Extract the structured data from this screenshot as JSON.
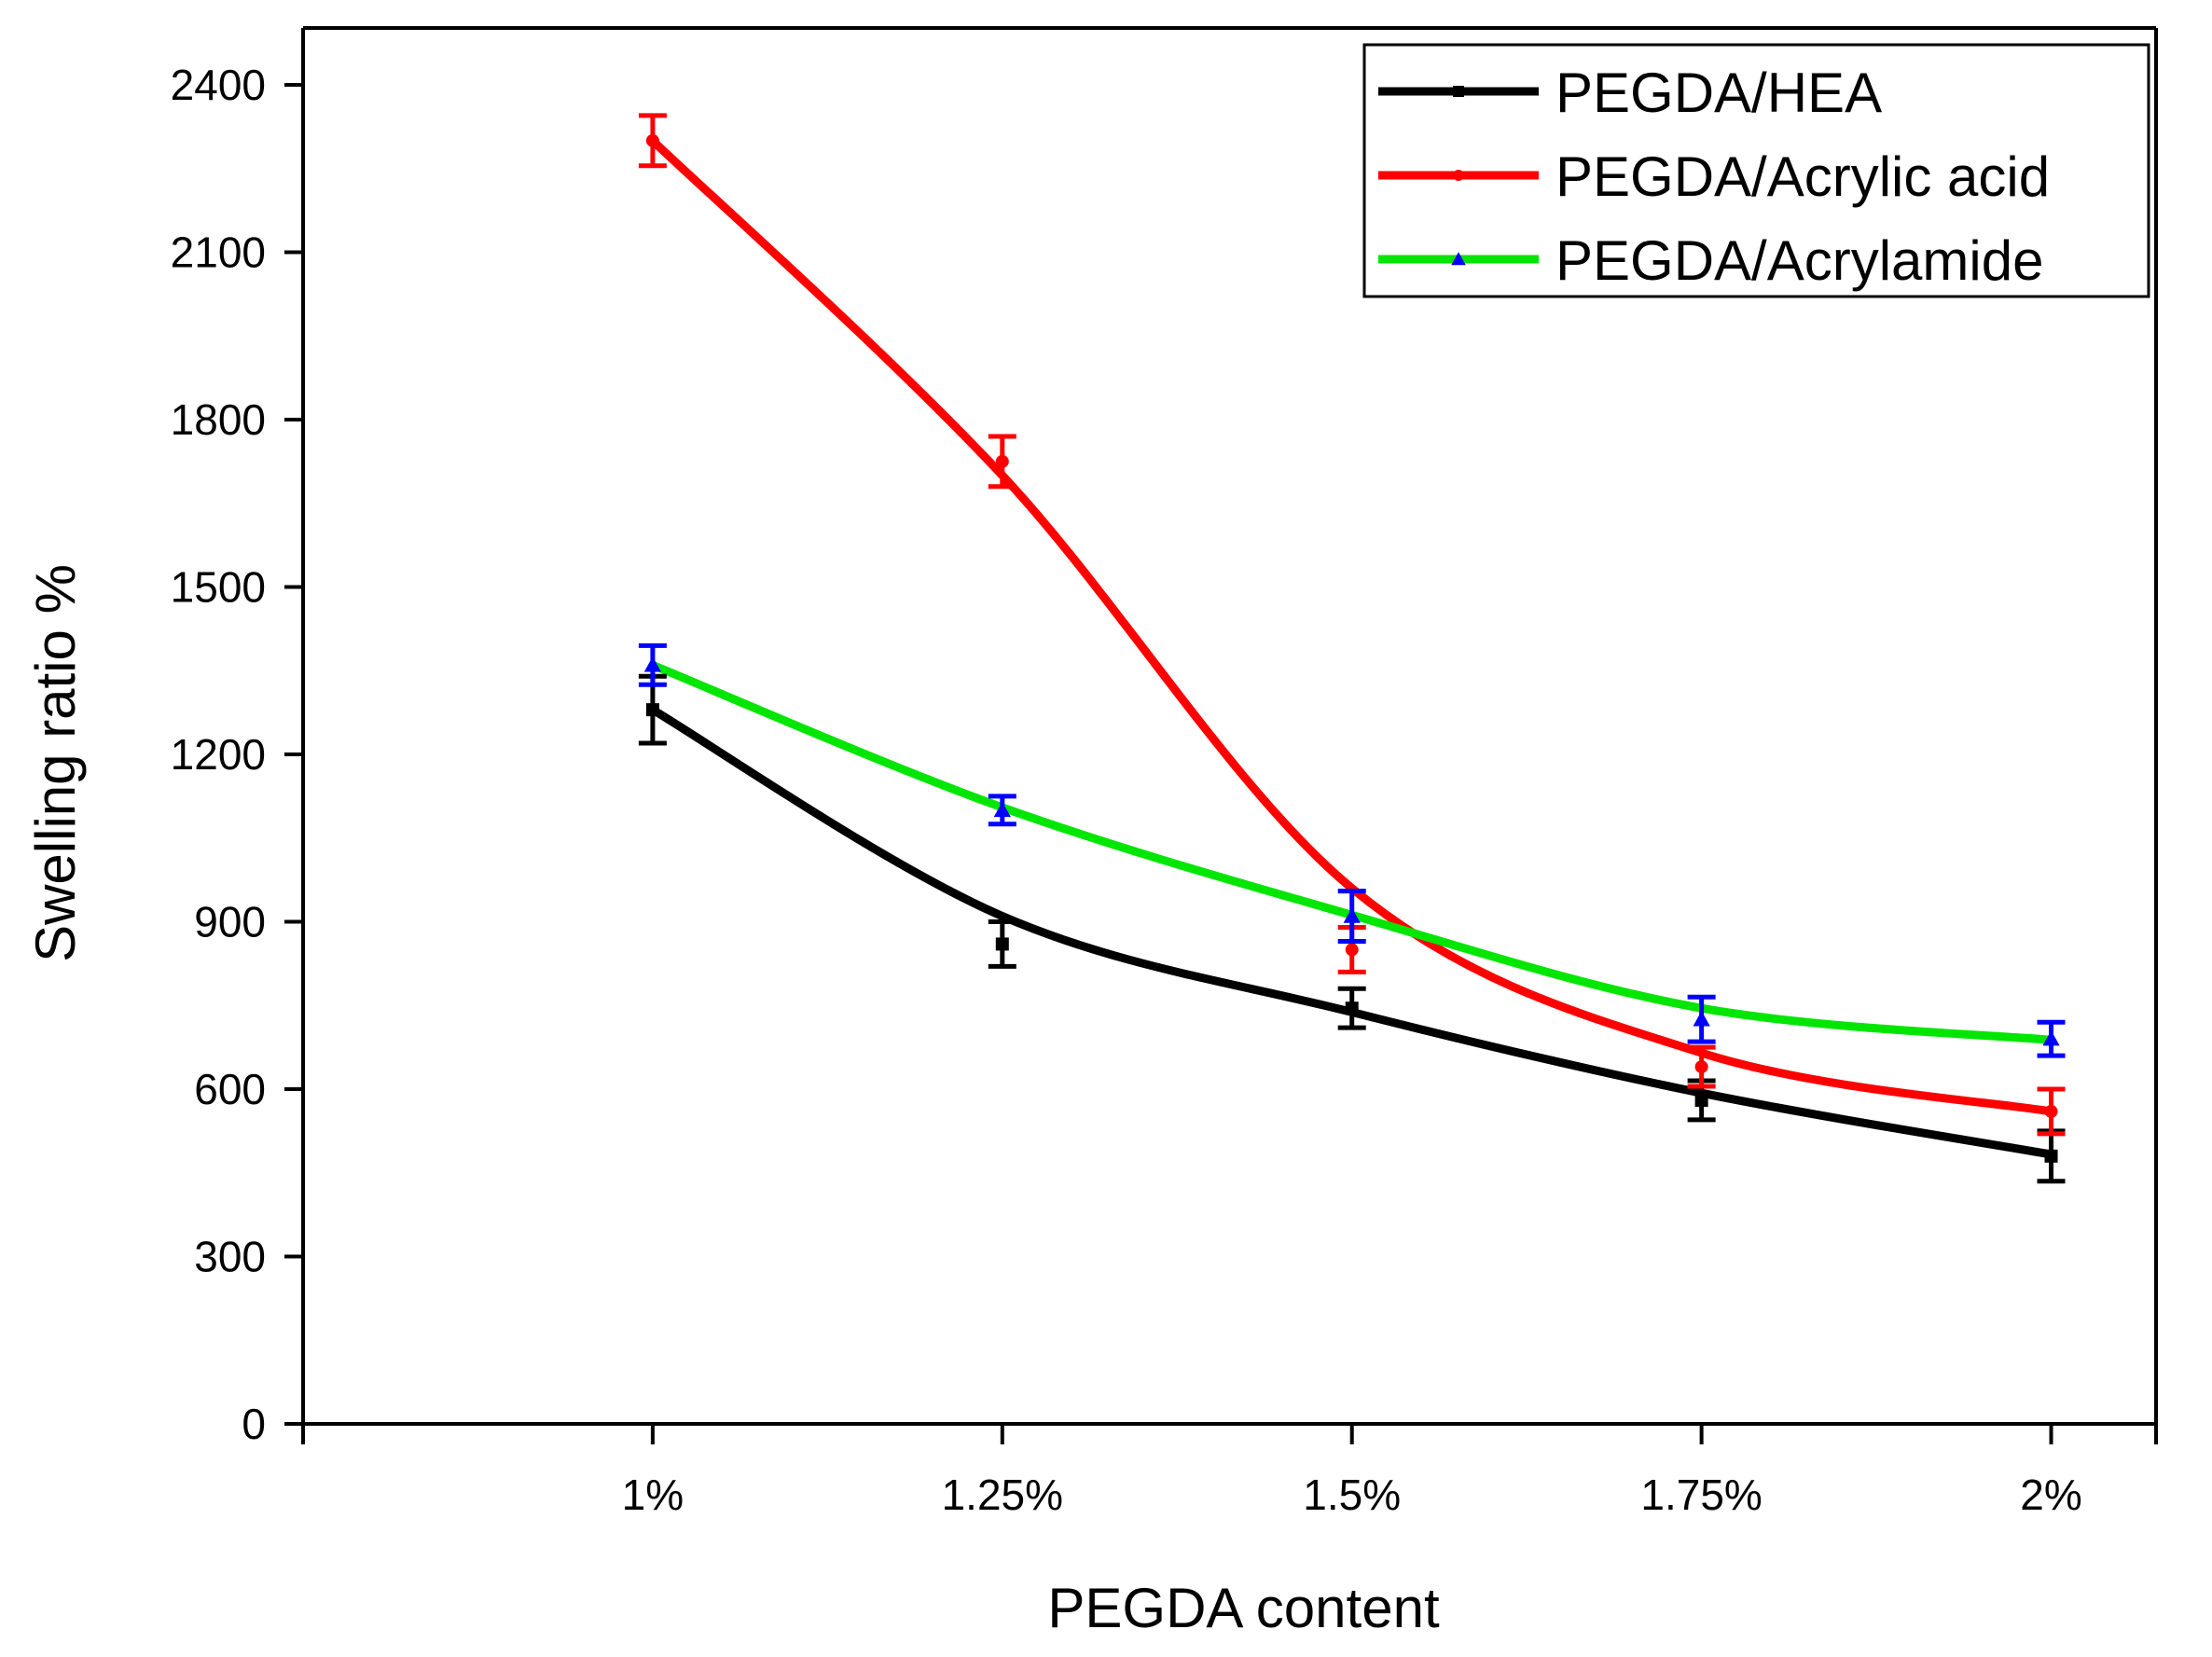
{
  "chart_data": {
    "type": "line",
    "title": "",
    "xlabel": "PEGDA content",
    "ylabel": "Swelling ratio %",
    "categories": [
      "1%",
      "1.25%",
      "1.5%",
      "1.75%",
      "2%"
    ],
    "xlim": [
      0,
      5.3
    ],
    "ylim": [
      0,
      2400
    ],
    "yticks": [
      0,
      300,
      600,
      900,
      1200,
      1500,
      1800,
      2100,
      2400
    ],
    "grid": false,
    "legend_position": "top-right",
    "series": [
      {
        "name": "PEGDA/HEA",
        "line_color": "#000000",
        "marker_color": "#000000",
        "errorbar_color": "#000000",
        "marker": "square",
        "values": [
          1280,
          860,
          745,
          580,
          480
        ],
        "errors": [
          60,
          40,
          35,
          35,
          45
        ],
        "fit_values": [
          1280,
          910,
          738,
          593,
          483
        ]
      },
      {
        "name": "PEGDA/Acrylic acid",
        "line_color": "#ff0000",
        "marker_color": "#ff0000",
        "errorbar_color": "#ff0000",
        "marker": "circle",
        "values": [
          2300,
          1725,
          850,
          640,
          560
        ],
        "errors": [
          45,
          45,
          40,
          35,
          40
        ],
        "fit_values": [
          2300,
          1700,
          960,
          665,
          560
        ]
      },
      {
        "name": "PEGDA/Acrylamide",
        "line_color": "#00e600",
        "marker_color": "#0000ff",
        "errorbar_color": "#0000ff",
        "marker": "triangle",
        "values": [
          1360,
          1100,
          910,
          725,
          690
        ],
        "errors": [
          35,
          25,
          45,
          40,
          30
        ],
        "fit_values": [
          1360,
          1105,
          912,
          745,
          688
        ]
      }
    ]
  }
}
